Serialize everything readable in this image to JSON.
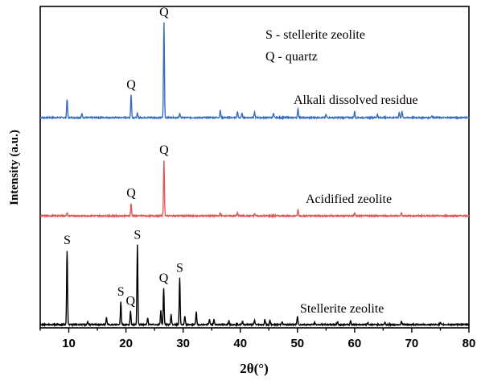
{
  "chart_data": {
    "type": "line",
    "xlabel": "2θ(°)",
    "ylabel": "Intensity (a.u.)",
    "xlim": [
      5,
      80
    ],
    "xticks": [
      10,
      20,
      30,
      40,
      50,
      60,
      70,
      80
    ],
    "y_ticks_shown": false,
    "grid": false,
    "legend": {
      "placement": "top-right",
      "entries": [
        "S  - stellerite zeolite",
        "Q - quartz"
      ]
    },
    "series": [
      {
        "name": "Alkali dissolved residue",
        "color": "#3a6ebf",
        "offset": 2.0,
        "peaks": [
          {
            "x": 9.7,
            "h": 0.18
          },
          {
            "x": 12.3,
            "h": 0.04
          },
          {
            "x": 20.9,
            "h": 0.22
          },
          {
            "x": 22.0,
            "h": 0.04
          },
          {
            "x": 26.65,
            "h": 0.92
          },
          {
            "x": 29.4,
            "h": 0.04
          },
          {
            "x": 36.5,
            "h": 0.07
          },
          {
            "x": 39.5,
            "h": 0.06
          },
          {
            "x": 40.3,
            "h": 0.04
          },
          {
            "x": 42.5,
            "h": 0.05
          },
          {
            "x": 45.8,
            "h": 0.04
          },
          {
            "x": 50.1,
            "h": 0.09
          },
          {
            "x": 55.0,
            "h": 0.03
          },
          {
            "x": 60.0,
            "h": 0.06
          },
          {
            "x": 64.0,
            "h": 0.03
          },
          {
            "x": 67.8,
            "h": 0.05
          },
          {
            "x": 68.3,
            "h": 0.06
          },
          {
            "x": 73.5,
            "h": 0.02
          }
        ],
        "annotations": [
          {
            "label": "Q",
            "x": 20.9,
            "h": 0.22
          },
          {
            "label": "Q",
            "x": 26.65,
            "h": 0.92
          }
        ]
      },
      {
        "name": "Acidified zeolite",
        "color": "#e05a5a",
        "offset": 1.0,
        "peaks": [
          {
            "x": 9.7,
            "h": 0.03
          },
          {
            "x": 20.9,
            "h": 0.12
          },
          {
            "x": 26.65,
            "h": 0.54
          },
          {
            "x": 36.5,
            "h": 0.03
          },
          {
            "x": 39.5,
            "h": 0.03
          },
          {
            "x": 42.5,
            "h": 0.02
          },
          {
            "x": 50.1,
            "h": 0.06
          },
          {
            "x": 60.0,
            "h": 0.03
          },
          {
            "x": 68.2,
            "h": 0.03
          }
        ],
        "annotations": [
          {
            "label": "Q",
            "x": 20.9,
            "h": 0.12
          },
          {
            "label": "Q",
            "x": 26.65,
            "h": 0.54
          }
        ]
      },
      {
        "name": "Stellerite zeolite",
        "color": "#000000",
        "offset": 0.0,
        "peaks": [
          {
            "x": 9.7,
            "h": 0.72
          },
          {
            "x": 13.3,
            "h": 0.03
          },
          {
            "x": 16.6,
            "h": 0.07
          },
          {
            "x": 19.1,
            "h": 0.22
          },
          {
            "x": 20.8,
            "h": 0.13
          },
          {
            "x": 22.0,
            "h": 0.77
          },
          {
            "x": 23.8,
            "h": 0.07
          },
          {
            "x": 26.1,
            "h": 0.14
          },
          {
            "x": 26.6,
            "h": 0.35
          },
          {
            "x": 27.9,
            "h": 0.1
          },
          {
            "x": 29.4,
            "h": 0.45
          },
          {
            "x": 30.3,
            "h": 0.08
          },
          {
            "x": 32.3,
            "h": 0.13
          },
          {
            "x": 34.6,
            "h": 0.05
          },
          {
            "x": 35.4,
            "h": 0.05
          },
          {
            "x": 38.0,
            "h": 0.04
          },
          {
            "x": 40.4,
            "h": 0.03
          },
          {
            "x": 42.5,
            "h": 0.04
          },
          {
            "x": 44.3,
            "h": 0.05
          },
          {
            "x": 45.2,
            "h": 0.04
          },
          {
            "x": 47.3,
            "h": 0.03
          },
          {
            "x": 50.0,
            "h": 0.08
          },
          {
            "x": 53.0,
            "h": 0.02
          },
          {
            "x": 57.0,
            "h": 0.03
          },
          {
            "x": 59.3,
            "h": 0.04
          },
          {
            "x": 62.3,
            "h": 0.02
          },
          {
            "x": 65.3,
            "h": 0.02
          },
          {
            "x": 68.2,
            "h": 0.03
          },
          {
            "x": 75.0,
            "h": 0.02
          }
        ],
        "annotations": [
          {
            "label": "S",
            "x": 9.7,
            "h": 0.72
          },
          {
            "label": "S",
            "x": 19.1,
            "h": 0.22
          },
          {
            "label": "Q",
            "x": 20.8,
            "h": 0.13
          },
          {
            "label": "S",
            "x": 22.0,
            "h": 0.77
          },
          {
            "label": "Q",
            "x": 26.6,
            "h": 0.35
          },
          {
            "label": "S",
            "x": 29.4,
            "h": 0.45
          }
        ]
      }
    ]
  }
}
